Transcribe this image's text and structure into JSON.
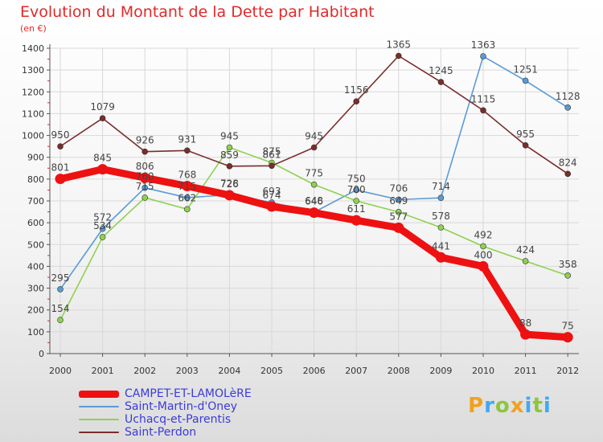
{
  "chart_data": {
    "type": "line",
    "title": "Evolution du Montant de la Dette par Habitant",
    "subtitle": "(en €)",
    "xlabel": "",
    "ylabel": "",
    "ylim": [
      0,
      1400
    ],
    "y_ticks": [
      "0",
      "100",
      "200",
      "300",
      "400",
      "500",
      "600",
      "700",
      "800",
      "900",
      "1000",
      "1100",
      "1200",
      "1300",
      "1400"
    ],
    "categories": [
      "2000",
      "2001",
      "2002",
      "2003",
      "2004",
      "2005",
      "2006",
      "2007",
      "2008",
      "2009",
      "2010",
      "2011",
      "2012"
    ],
    "grid": true,
    "legend_position": "bottom-left",
    "series": [
      {
        "name": "CAMPET-ET-LAMOLèRE",
        "color": "#ee1111",
        "emphasis": true,
        "values": [
          801,
          845,
          806,
          768,
          726,
          674,
          646,
          611,
          577,
          441,
          400,
          88,
          75
        ],
        "labels": [
          "801",
          "845",
          "806",
          "768",
          "726",
          "674",
          "646",
          "611",
          "577",
          "441",
          "400",
          "88",
          "75"
        ]
      },
      {
        "name": "Saint-Martin-d'Oney",
        "color": "#5b9bd5",
        "emphasis": false,
        "values": [
          295,
          572,
          760,
          715,
          728,
          693,
          648,
          750,
          706,
          714,
          1363,
          1251,
          1128
        ],
        "labels": [
          "295",
          "572",
          "760",
          "715",
          "728",
          "693",
          "648",
          "750",
          "706",
          "714",
          "1363",
          "1251",
          "1128"
        ]
      },
      {
        "name": "Uchacq-et-Parentis",
        "color": "#8fd14f",
        "emphasis": false,
        "values": [
          154,
          534,
          715,
          662,
          945,
          875,
          775,
          700,
          649,
          578,
          492,
          424,
          358
        ],
        "labels": [
          "154",
          "534",
          "715",
          "662",
          "945",
          "875",
          "775",
          "700",
          "649",
          "578",
          "492",
          "424",
          "358"
        ]
      },
      {
        "name": "Saint-Perdon",
        "color": "#7b2c2c",
        "emphasis": false,
        "values": [
          950,
          1079,
          926,
          931,
          859,
          861,
          945,
          1156,
          1365,
          1245,
          1115,
          955,
          824
        ],
        "labels": [
          "950",
          "1079",
          "926",
          "931",
          "859",
          "861",
          "945",
          "1156",
          "1365",
          "1245",
          "1115",
          "955",
          "824"
        ]
      }
    ]
  },
  "logo": {
    "letters": [
      "P",
      "r",
      "o",
      "x",
      "i",
      "t",
      "i"
    ],
    "colors": [
      "#f2a11f",
      "#3fa9f5",
      "#8cc63f",
      "#f2a11f",
      "#3fa9f5",
      "#8cc63f",
      "#3fa9f5"
    ]
  }
}
